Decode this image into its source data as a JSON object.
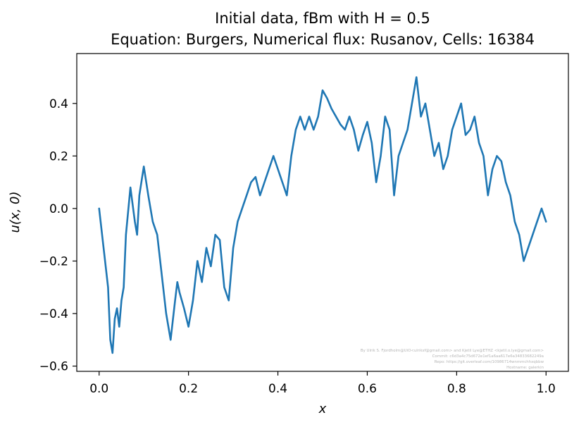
{
  "chart_data": {
    "type": "line",
    "title_line1": "Initial data, fBm with H = 0.5",
    "title_line2": "Equation: Burgers, Numerical flux: Rusanov, Cells: 16384",
    "xlabel": "x",
    "ylabel": "u(x, 0)",
    "xlim": [
      -0.05,
      1.05
    ],
    "ylim": [
      -0.62,
      0.59
    ],
    "xticks": [
      0.0,
      0.2,
      0.4,
      0.6,
      0.8,
      1.0
    ],
    "xtick_labels": [
      "0.0",
      "0.2",
      "0.4",
      "0.6",
      "0.8",
      "1.0"
    ],
    "yticks": [
      -0.6,
      -0.4,
      -0.2,
      0.0,
      0.2,
      0.4
    ],
    "ytick_labels": [
      "−0.6",
      "−0.4",
      "−0.2",
      "0.0",
      "0.2",
      "0.4"
    ],
    "line_color": "#1f77b4",
    "grid": false,
    "series": [
      {
        "x": [
          0.0,
          0.01,
          0.02,
          0.025,
          0.03,
          0.035,
          0.04,
          0.045,
          0.05,
          0.055,
          0.06,
          0.07,
          0.08,
          0.085,
          0.09,
          0.1,
          0.11,
          0.12,
          0.13,
          0.14,
          0.15,
          0.16,
          0.17,
          0.175,
          0.18,
          0.19,
          0.2,
          0.21,
          0.22,
          0.23,
          0.24,
          0.25,
          0.26,
          0.27,
          0.28,
          0.29,
          0.3,
          0.31,
          0.32,
          0.33,
          0.34,
          0.35,
          0.36,
          0.37,
          0.38,
          0.39,
          0.4,
          0.41,
          0.42,
          0.43,
          0.44,
          0.45,
          0.46,
          0.47,
          0.48,
          0.49,
          0.5,
          0.51,
          0.52,
          0.53,
          0.54,
          0.55,
          0.56,
          0.57,
          0.58,
          0.59,
          0.6,
          0.61,
          0.62,
          0.63,
          0.64,
          0.65,
          0.66,
          0.67,
          0.68,
          0.69,
          0.7,
          0.71,
          0.72,
          0.73,
          0.74,
          0.75,
          0.76,
          0.77,
          0.78,
          0.79,
          0.8,
          0.81,
          0.82,
          0.83,
          0.84,
          0.85,
          0.86,
          0.87,
          0.88,
          0.89,
          0.9,
          0.91,
          0.92,
          0.93,
          0.94,
          0.95,
          0.96,
          0.97,
          0.98,
          0.99,
          1.0
        ],
        "y": [
          0.0,
          -0.15,
          -0.3,
          -0.5,
          -0.55,
          -0.42,
          -0.38,
          -0.45,
          -0.35,
          -0.3,
          -0.1,
          0.08,
          -0.05,
          -0.1,
          0.05,
          0.16,
          0.05,
          -0.05,
          -0.1,
          -0.25,
          -0.4,
          -0.5,
          -0.35,
          -0.28,
          -0.32,
          -0.38,
          -0.45,
          -0.35,
          -0.2,
          -0.28,
          -0.15,
          -0.22,
          -0.1,
          -0.12,
          -0.3,
          -0.35,
          -0.15,
          -0.05,
          0.0,
          0.05,
          0.1,
          0.12,
          0.05,
          0.1,
          0.15,
          0.2,
          0.15,
          0.1,
          0.05,
          0.2,
          0.3,
          0.35,
          0.3,
          0.35,
          0.3,
          0.35,
          0.45,
          0.42,
          0.38,
          0.35,
          0.32,
          0.3,
          0.35,
          0.3,
          0.22,
          0.28,
          0.33,
          0.25,
          0.1,
          0.2,
          0.35,
          0.3,
          0.05,
          0.2,
          0.25,
          0.3,
          0.4,
          0.5,
          0.35,
          0.4,
          0.3,
          0.2,
          0.25,
          0.15,
          0.2,
          0.3,
          0.35,
          0.4,
          0.28,
          0.3,
          0.35,
          0.25,
          0.2,
          0.05,
          0.15,
          0.2,
          0.18,
          0.1,
          0.05,
          -0.05,
          -0.1,
          -0.2,
          -0.15,
          -0.1,
          -0.05,
          0.0,
          -0.05
        ]
      }
    ]
  },
  "watermark": {
    "line1": "By Ulrik S. Fjordholm@UiO<ulriksf@gmail.com> and Kjetil Lye@ETHZ <kjetil.o.lye@gmail.com>",
    "line2": "Commit: c6d3a4c75d672e1ef1a6aa617e6a34833682249a",
    "line3": "Repo: https://git.overleaf.com/10986714wnmmchhxqbbw",
    "line4": "Hostname: galerkin"
  }
}
